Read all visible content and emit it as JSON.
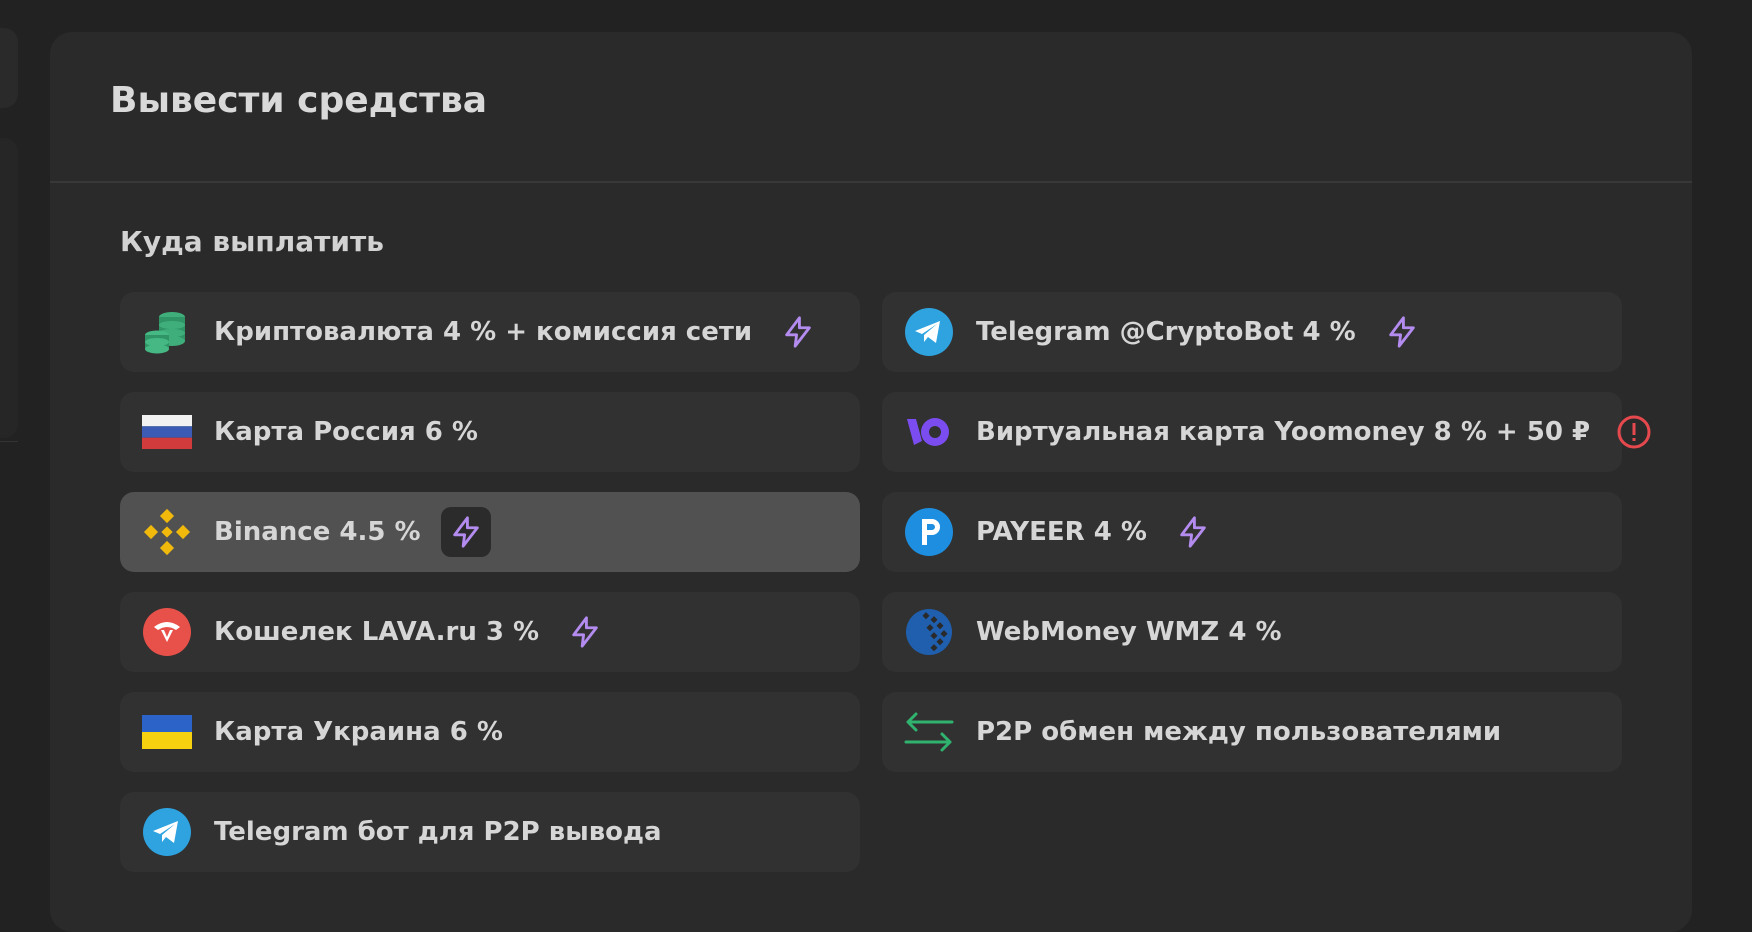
{
  "header": {
    "title": "Вывести средства"
  },
  "section": {
    "label": "Куда выплатить"
  },
  "options": [
    {
      "label": "Криптовалюта 4 % + комиссия сети",
      "icon": "crypto-coins-icon",
      "badge": "lightning-icon"
    },
    {
      "label": "Telegram @CryptoBot 4 %",
      "icon": "telegram-icon",
      "badge": "lightning-icon"
    },
    {
      "label": "Карта Россия 6 %",
      "icon": "russia-flag-icon",
      "badge": ""
    },
    {
      "label": "Виртуальная карта Yoomoney 8 % + 50 ₽",
      "icon": "yoomoney-icon",
      "badge": "alert-icon"
    },
    {
      "label": "Binance 4.5 %",
      "icon": "binance-icon",
      "badge": "lightning-icon",
      "selected": true
    },
    {
      "label": "PAYEER 4 %",
      "icon": "payeer-icon",
      "badge": "lightning-icon"
    },
    {
      "label": "Кошелек LAVA.ru 3 %",
      "icon": "lava-icon",
      "badge": "lightning-icon"
    },
    {
      "label": "WebMoney WMZ 4 %",
      "icon": "webmoney-icon",
      "badge": ""
    },
    {
      "label": "Карта Украина 6 %",
      "icon": "ukraine-flag-icon",
      "badge": ""
    },
    {
      "label": "P2P обмен между пользователями",
      "icon": "exchange-arrows-icon",
      "badge": ""
    },
    {
      "label": "Telegram бот для P2P вывода",
      "icon": "telegram-icon",
      "badge": ""
    }
  ],
  "colors": {
    "accent_lightning": "#b48cf0",
    "alert": "#e5484d",
    "selected_bg": "#515151",
    "option_bg": "#313131"
  }
}
